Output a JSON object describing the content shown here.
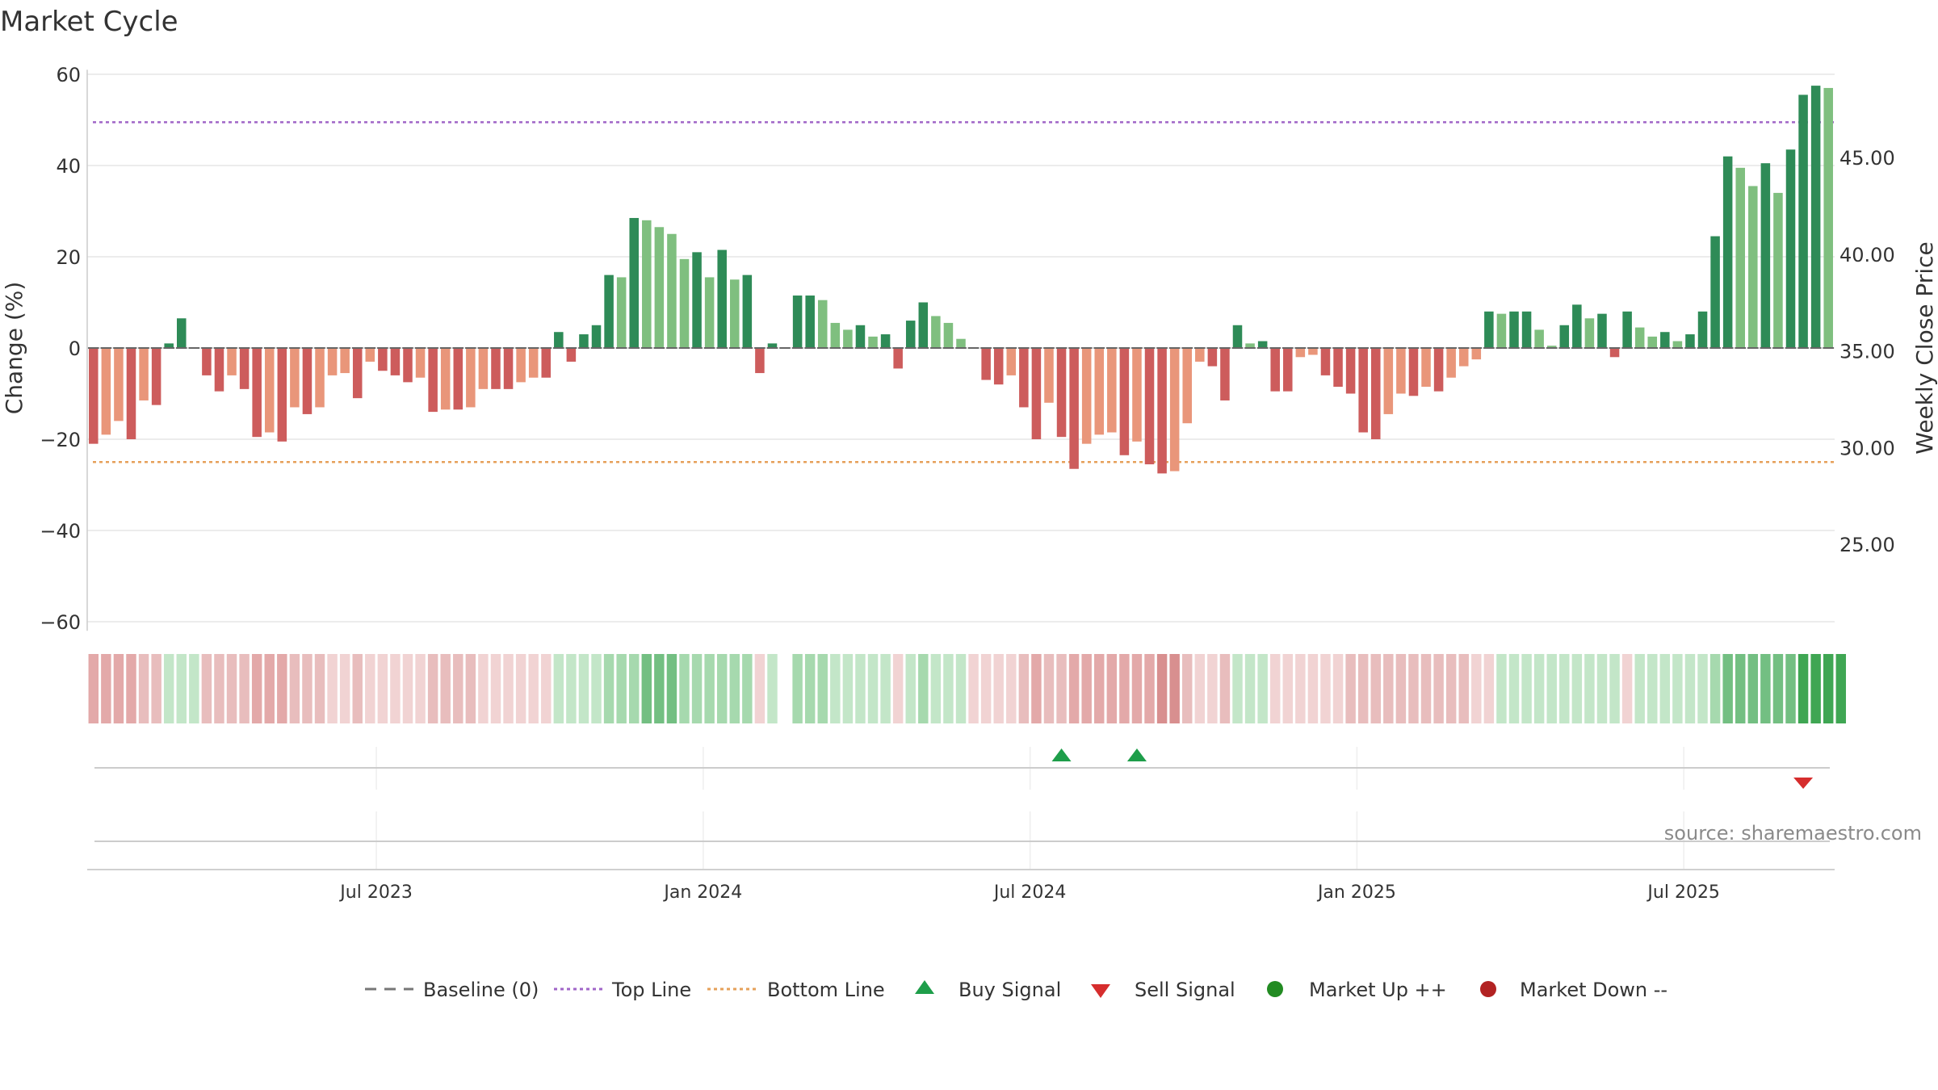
{
  "chart_data": {
    "type": "bar",
    "title": "Market Cycle",
    "ylabel_left": "Change (%)",
    "ylabel_right": "Weekly Close Price",
    "ylim": [
      -60,
      60
    ],
    "yticks": [
      "60",
      "40",
      "20",
      "0",
      "−20",
      "−40",
      "−60"
    ],
    "ytick_values": [
      60,
      40,
      20,
      0,
      -20,
      -40,
      -60
    ],
    "y2ticks": [
      "45.00",
      "40.00",
      "35.00",
      "30.00",
      "25.00"
    ],
    "y2tick_values": [
      45,
      40,
      35,
      30,
      25
    ],
    "y2lim": [
      21,
      49.3
    ],
    "xticks": [
      "Jul 2023",
      "Jan 2024",
      "Jul 2024",
      "Jan 2025",
      "Jul 2025"
    ],
    "xtick_weeks": [
      23,
      49,
      75,
      101,
      127
    ],
    "top_line": 49.5,
    "bottom_line": -25,
    "grid": true,
    "series": [
      {
        "name": "Change (%)",
        "values": [
          -21,
          -19,
          -16,
          -20,
          -11.5,
          -12.5,
          1,
          6.5,
          0,
          -6,
          -9.5,
          -6,
          -9,
          -19.5,
          -18.5,
          -20.5,
          -13,
          -14.5,
          -13,
          -6,
          -5.5,
          -11,
          -3,
          -5,
          -6,
          -7.5,
          -6.5,
          -14,
          -13.5,
          -13.5,
          -13,
          -9,
          -9,
          -9,
          -7.5,
          -6.5,
          -6.5,
          3.5,
          -3,
          3,
          5,
          16,
          15.5,
          28.5,
          28,
          26.5,
          25,
          19.5,
          21,
          15.5,
          21.5,
          15,
          16,
          -5.5,
          1,
          0,
          11.5,
          11.5,
          10.5,
          5.5,
          4,
          5,
          2.5,
          3,
          -4.5,
          6,
          10,
          7,
          5.5,
          2,
          0,
          -7,
          -8,
          -6,
          -13,
          -20,
          -12,
          -19.5,
          -26.5,
          -21,
          -19,
          -18.5,
          -23.5,
          -20.5,
          -25.5,
          -27.5,
          -27,
          -16.5,
          -3,
          -4,
          -11.5,
          5,
          1,
          1.5,
          -9.5,
          -9.5,
          -2,
          -1.5,
          -6,
          -8.5,
          -10,
          -18.5,
          -20,
          -14.5,
          -10,
          -10.5,
          -8.5,
          -9.5,
          -6.5,
          -4,
          -2.5,
          8,
          7.5,
          8,
          8,
          4,
          0.5,
          5,
          9.5,
          6.5,
          7.5,
          -2,
          8,
          4.5,
          2.5,
          3.5,
          1.5,
          3,
          8,
          24.5,
          42,
          39.5,
          35.5,
          40.5,
          34,
          43.5,
          55.5,
          57.5,
          57
        ]
      }
    ],
    "heat_strip": [
      -3,
      -3,
      -3,
      -3,
      -2,
      -2,
      1,
      1,
      1,
      -2,
      -2,
      -2,
      -2,
      -3,
      -3,
      -3,
      -2,
      -2,
      -2,
      -1,
      -1,
      -2,
      -1,
      -1,
      -1,
      -1,
      -1,
      -2,
      -2,
      -2,
      -2,
      -1,
      -1,
      -1,
      -1,
      -1,
      -1,
      1,
      1,
      1,
      1,
      2,
      2,
      2,
      3,
      3,
      3,
      2,
      2,
      2,
      2,
      2,
      2,
      -1,
      1,
      null,
      2,
      2,
      2,
      1,
      1,
      1,
      1,
      1,
      -1,
      1,
      2,
      1,
      1,
      1,
      -1,
      -1,
      -1,
      -1,
      -2,
      -3,
      -2,
      -2,
      -3,
      -3,
      -3,
      -3,
      -3,
      -3,
      -3,
      -4,
      -4,
      -2,
      -1,
      -1,
      -2,
      1,
      1,
      1,
      -1,
      -1,
      -1,
      -1,
      -1,
      -1,
      -2,
      -2,
      -2,
      -2,
      -2,
      -2,
      -2,
      -2,
      -2,
      -2,
      -1,
      -1,
      1,
      1,
      1,
      1,
      1,
      1,
      1,
      1,
      1,
      1,
      -1,
      1,
      1,
      1,
      1,
      1,
      1,
      2,
      3,
      3,
      3,
      3,
      3,
      3,
      4,
      4,
      4,
      4
    ],
    "buy_signals": [
      77,
      83
    ],
    "sell_signals": [
      136
    ],
    "legend": [
      "Baseline (0)",
      "Top Line",
      "Bottom Line",
      "Buy Signal",
      "Sell Signal",
      "Market Up ++",
      "Market Down --"
    ],
    "legend_placement": "bottom-center",
    "colors": {
      "strong_up": "#2e8b57",
      "up": "#7fbf7f",
      "strong_down": "#cd5c5c",
      "down": "#e9967a",
      "top_line": "#a066c8",
      "bottom_line": "#e6a05a",
      "buy": "#1e9e4a",
      "sell": "#d62d2d",
      "market_up": "#228b22",
      "market_down": "#b22222"
    },
    "source": "source: sharemaestro.com"
  }
}
